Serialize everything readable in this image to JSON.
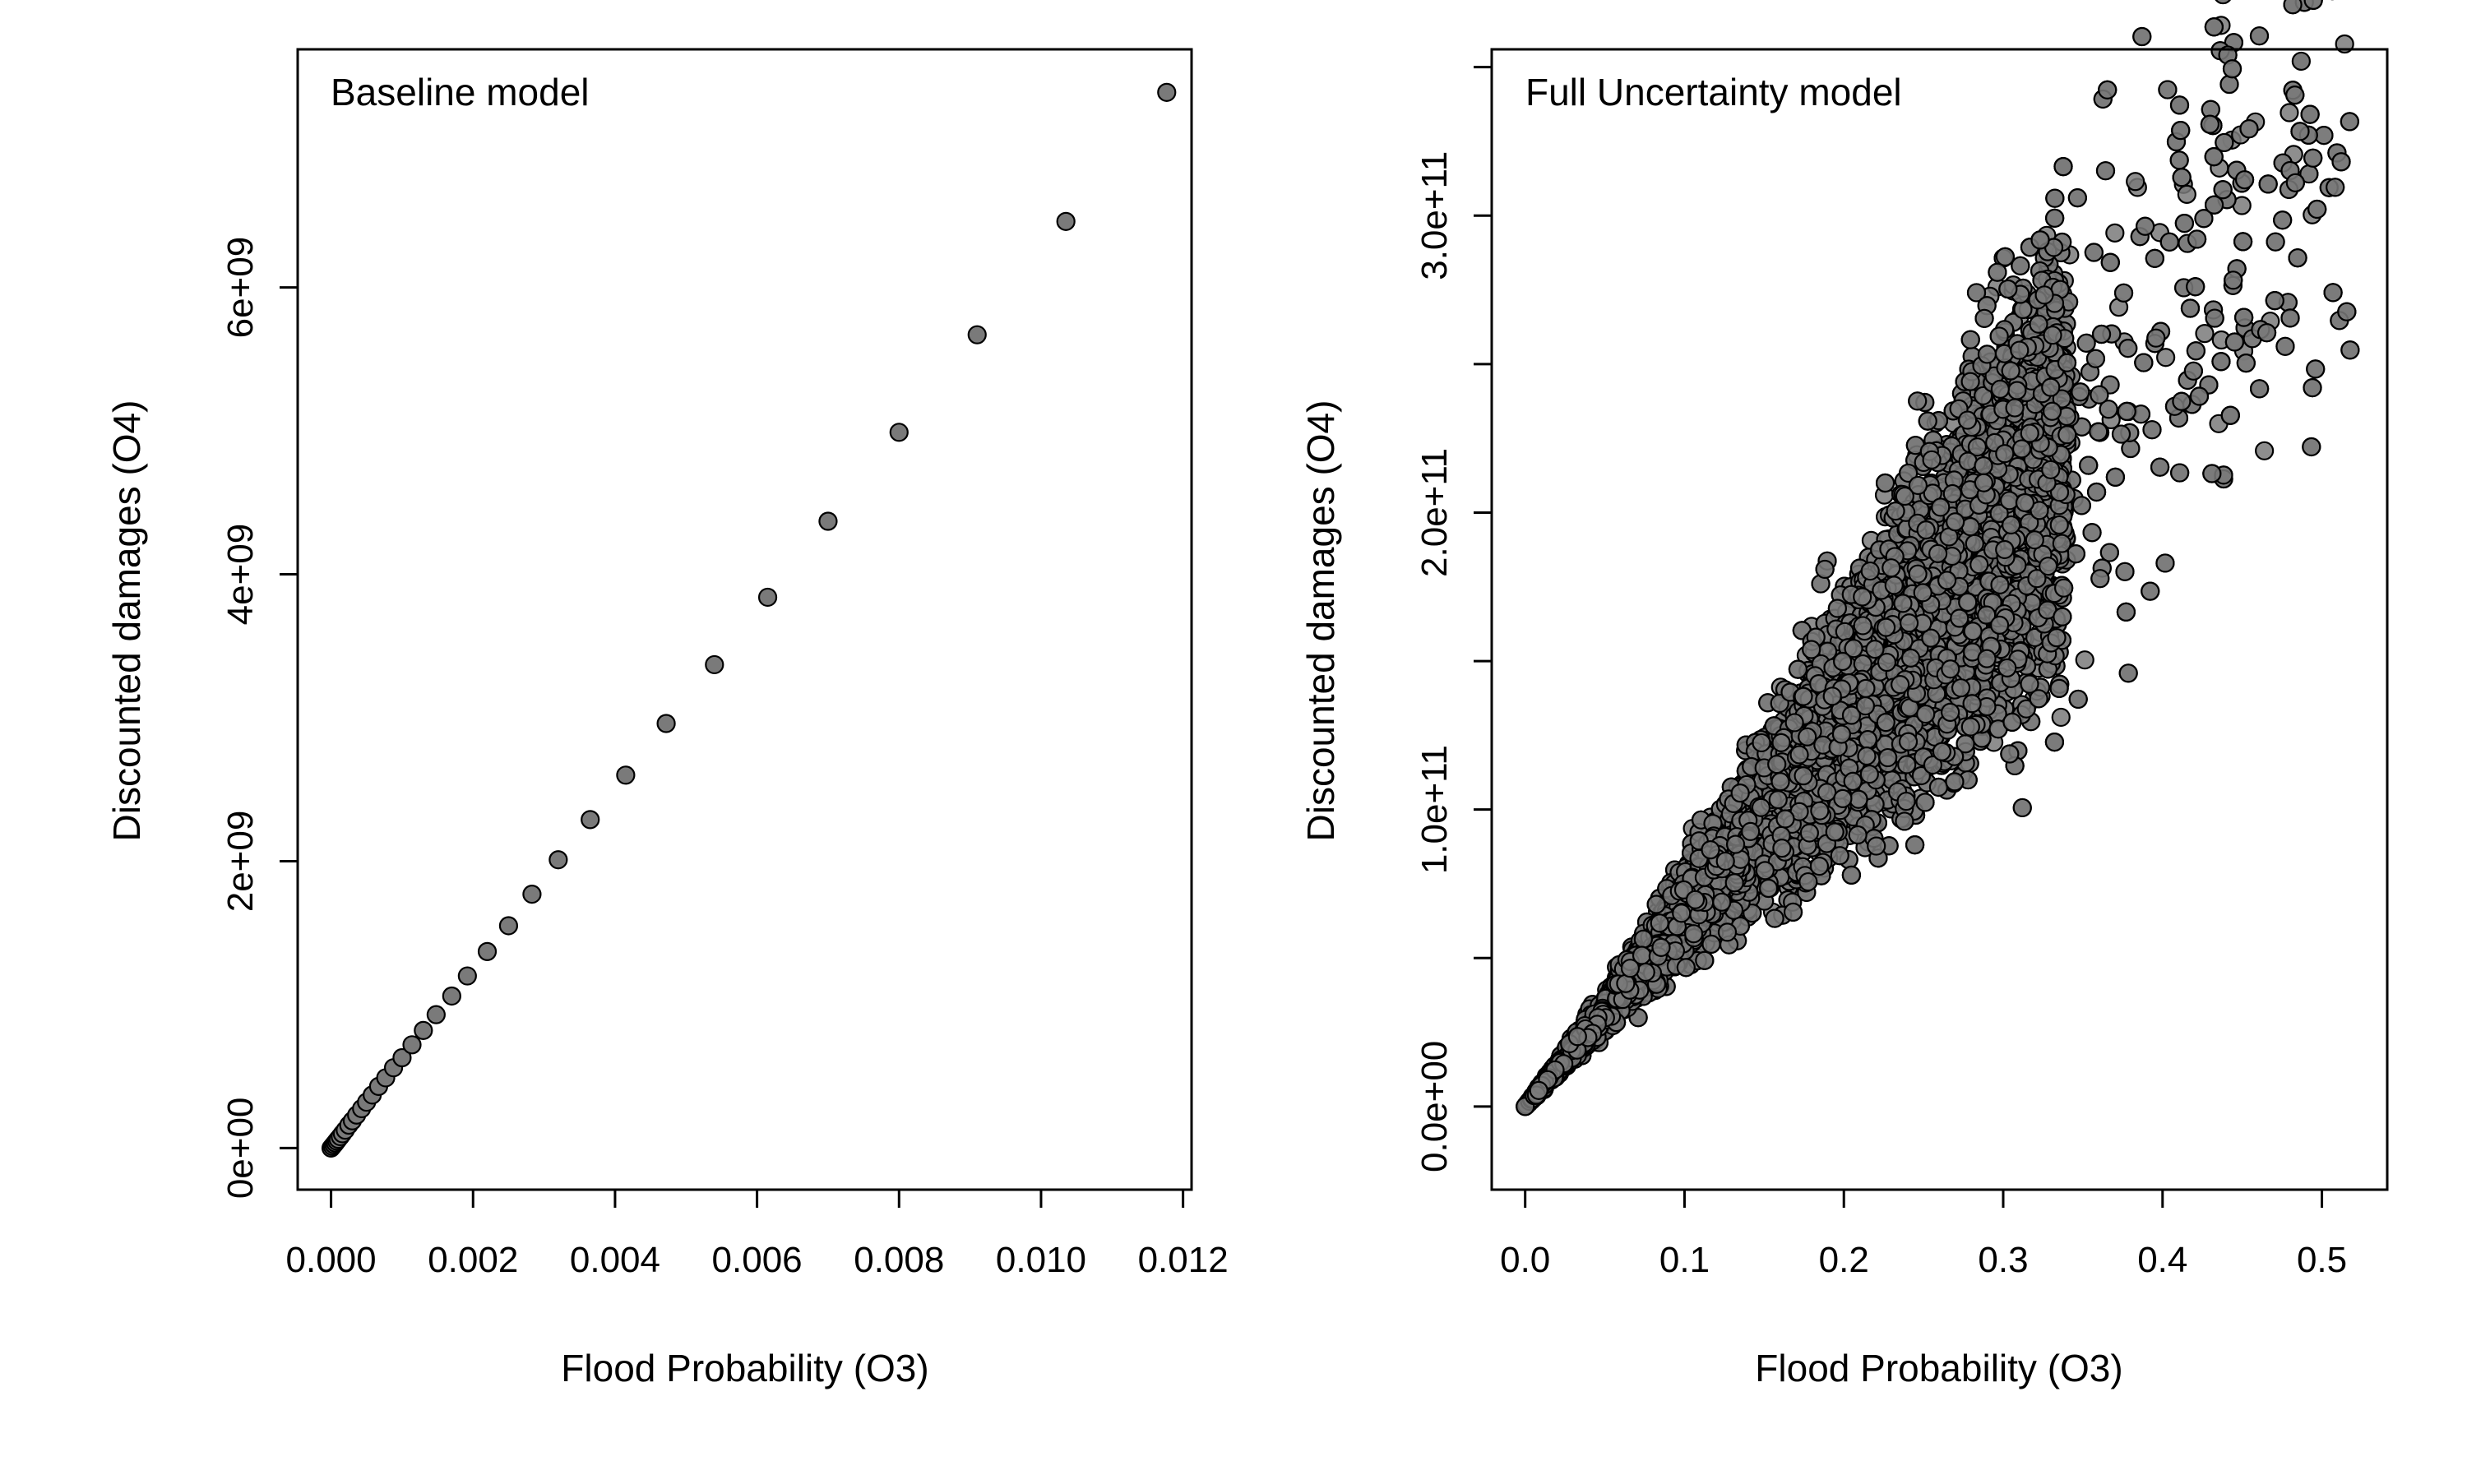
{
  "chart_data": [
    {
      "type": "scatter",
      "panel_label": "Baseline model",
      "xlabel": "Flood Probability (O3)",
      "ylabel": "Discounted damages (O4)",
      "xlim": [
        -0.00047,
        0.01212
      ],
      "ylim": [
        -290000000.0,
        7660000000.0
      ],
      "x_ticks": [
        0,
        0.002,
        0.004,
        0.006,
        0.008,
        0.01,
        0.012
      ],
      "x_tick_labels": [
        "0.000",
        "0.002",
        "0.004",
        "0.006",
        "0.008",
        "0.010",
        "0.012"
      ],
      "y_ticks": [
        0,
        2000000000.0,
        4000000000.0,
        6000000000.0
      ],
      "y_tick_labels": [
        "0e+00",
        "2e+09",
        "4e+09",
        "6e+09"
      ],
      "points": {
        "x": [
          0,
          2e-05,
          4e-05,
          6e-05,
          8e-05,
          0.0001,
          0.00013,
          0.00016,
          0.0002,
          0.00025,
          0.0003,
          0.00036,
          0.00043,
          0.0005,
          0.00058,
          0.00067,
          0.00077,
          0.00088,
          0.001,
          0.00114,
          0.0013,
          0.00148,
          0.0017,
          0.00192,
          0.0022,
          0.0025,
          0.00283,
          0.0032,
          0.00365,
          0.00415,
          0.00472,
          0.0054,
          0.00615,
          0.007,
          0.008,
          0.0091,
          0.01035,
          0.01177
        ],
        "y": [
          0,
          12000000.0,
          24000000.0,
          36000000.0,
          49000000.0,
          62000000.0,
          80000000.0,
          100000000.0,
          125000000.0,
          160000000.0,
          190000000.0,
          230000000.0,
          275000000.0,
          320000000.0,
          370000000.0,
          430000000.0,
          490000000.0,
          560000000.0,
          630000000.0,
          720000000.0,
          820000000.0,
          930000000.0,
          1060000000.0,
          1200000000.0,
          1370000000.0,
          1550000000.0,
          1770000000.0,
          2010000000.0,
          2290000000.0,
          2600000000.0,
          2960000000.0,
          3370000000.0,
          3840000000.0,
          4370000000.0,
          4990000000.0,
          5670000000.0,
          6460000000.0,
          7360000000.0
        ]
      },
      "marker_color": "#7a7a7a"
    },
    {
      "type": "scatter",
      "panel_label": "Full Uncertainty model",
      "xlabel": "Flood Probability (O3)",
      "ylabel": "Discounted damages (O4)",
      "xlim": [
        -0.021,
        0.541
      ],
      "ylim": [
        -28000000000.0,
        356000000000.0
      ],
      "x_ticks": [
        0,
        0.1,
        0.2,
        0.3,
        0.4,
        0.5
      ],
      "x_tick_labels": [
        "0.0",
        "0.1",
        "0.2",
        "0.3",
        "0.4",
        "0.5"
      ],
      "y_ticks": [
        0,
        50000000000.0,
        100000000000.0,
        150000000000.0,
        200000000000.0,
        250000000000.0,
        300000000000.0,
        350000000000.0
      ],
      "y_tick_labels": [
        "0.0e+00",
        "",
        "1.0e+11",
        "",
        "2.0e+11",
        "",
        "3.0e+11",
        ""
      ],
      "cloud": {
        "n_points": 14000,
        "x_range": [
          0,
          0.52
        ],
        "x_distribution": "right-skewed, dense below 0.35, sparse toward 0.52",
        "y_trend_per_unit_x": 640000000000.0,
        "y_spread_fraction": 0.17,
        "max_point": [
          0.487,
          352000000000.0
        ]
      },
      "marker_color": "#7a7a7a"
    }
  ]
}
